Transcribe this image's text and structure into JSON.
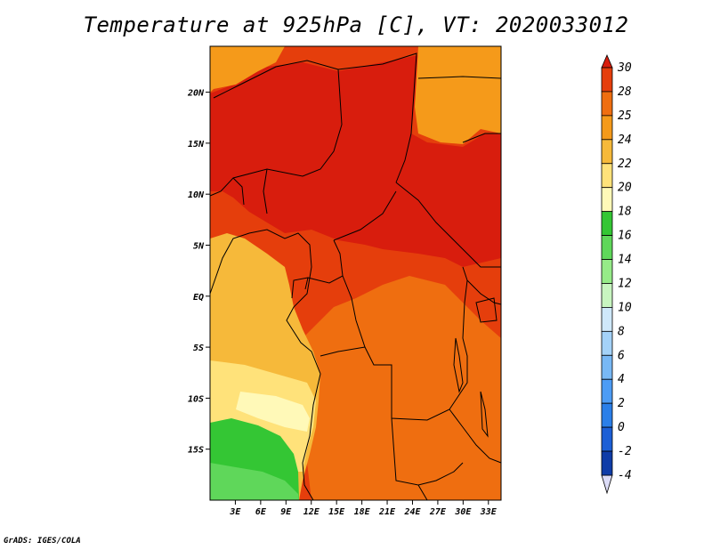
{
  "title": "Temperature at 925hPa [C], VT: 2020033012",
  "credit": "GrADS: IGES/COLA",
  "map": {
    "lon_range": [
      0,
      34.5
    ],
    "lat_range": [
      -20,
      24.5
    ],
    "lon_ticks": [
      {
        "value": 3,
        "label": "3E"
      },
      {
        "value": 6,
        "label": "6E"
      },
      {
        "value": 9,
        "label": "9E"
      },
      {
        "value": 12,
        "label": "12E"
      },
      {
        "value": 15,
        "label": "15E"
      },
      {
        "value": 18,
        "label": "18E"
      },
      {
        "value": 21,
        "label": "21E"
      },
      {
        "value": 24,
        "label": "24E"
      },
      {
        "value": 27,
        "label": "27E"
      },
      {
        "value": 30,
        "label": "30E"
      },
      {
        "value": 33,
        "label": "33E"
      }
    ],
    "lat_ticks": [
      {
        "value": 20,
        "label": "20N"
      },
      {
        "value": 15,
        "label": "15N"
      },
      {
        "value": 10,
        "label": "10N"
      },
      {
        "value": 5,
        "label": "5N"
      },
      {
        "value": 0,
        "label": "EQ"
      },
      {
        "value": -5,
        "label": "5S"
      },
      {
        "value": -10,
        "label": "10S"
      },
      {
        "value": -15,
        "label": "15S"
      }
    ]
  },
  "colorbar": {
    "levels": [
      "-4",
      "-2",
      "0",
      "2",
      "4",
      "6",
      "8",
      "10",
      "12",
      "14",
      "16",
      "18",
      "20",
      "22",
      "24",
      "25",
      "28",
      "30"
    ],
    "colors": [
      "#0b0b6e",
      "#0f3ca8",
      "#1c5fd6",
      "#2b7fe8",
      "#4d9cf5",
      "#78b8f5",
      "#a4d2f8",
      "#cfe8fa",
      "#c8f5c0",
      "#96eb88",
      "#5fd75a",
      "#34c634",
      "#fff9b8",
      "#ffe27a",
      "#f6b93a",
      "#f59a1a",
      "#ef6e10",
      "#e53e0c",
      "#d81d0d"
    ]
  },
  "palette": {
    "dark_red": "#d81d0d",
    "red": "#e53e0c",
    "red_orange": "#ef6e10",
    "orange": "#f59a1a",
    "light_orange": "#f6b93a",
    "yellow": "#ffe27a",
    "pale_yellow": "#fff9b8",
    "green": "#34c634",
    "light_green": "#5fd75a",
    "border": "#000000"
  }
}
